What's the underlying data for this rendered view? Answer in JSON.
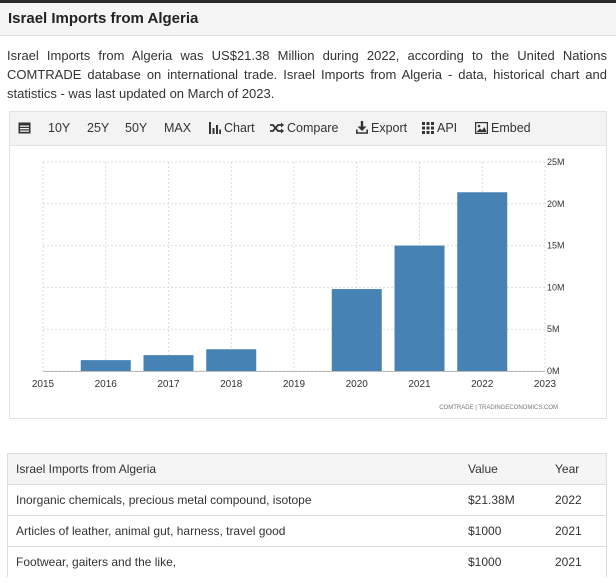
{
  "header": {
    "title": "Israel Imports from Algeria"
  },
  "description": "Israel Imports from Algeria was US$21.38 Million during 2022, according to the United Nations COMTRADE database on international trade. Israel Imports from Algeria - data, historical chart and statistics - was last updated on March of 2023.",
  "toolbar": {
    "items": [
      {
        "label": "",
        "icon": "calendar-icon"
      },
      {
        "label": "10Y"
      },
      {
        "label": "25Y"
      },
      {
        "label": "50Y"
      },
      {
        "label": "MAX"
      },
      {
        "label": "Chart",
        "icon": "bar-chart-icon"
      },
      {
        "label": "Compare",
        "icon": "shuffle-icon"
      },
      {
        "label": "Export",
        "icon": "download-icon"
      },
      {
        "label": "API",
        "icon": "grid-icon"
      },
      {
        "label": "Embed",
        "icon": "image-icon"
      }
    ]
  },
  "chart_data": {
    "type": "bar",
    "x": [
      2016,
      2017,
      2018,
      2020,
      2021,
      2022
    ],
    "values": [
      1.3,
      1.9,
      2.6,
      9.8,
      15.0,
      21.38
    ],
    "x_ticks": [
      "2015",
      "2016",
      "2017",
      "2018",
      "2019",
      "2020",
      "2021",
      "2022",
      "2023"
    ],
    "y_ticks": [
      "0M",
      "5M",
      "10M",
      "15M",
      "20M",
      "25M"
    ],
    "xlim": [
      2015,
      2023
    ],
    "ylim": [
      0,
      25
    ],
    "y_axis_side": "right",
    "grid": true,
    "bar_color": "#4682b4",
    "source": "COMTRADE | TRADINGECONOMICS.COM"
  },
  "table": {
    "headers": [
      "Israel Imports from Algeria",
      "Value",
      "Year"
    ],
    "rows": [
      [
        "Inorganic chemicals, precious metal compound, isotope",
        "$21.38M",
        "2022"
      ],
      [
        "Articles of leather, animal gut, harness, travel good",
        "$1000",
        "2021"
      ],
      [
        "Footwear, gaiters and the like,",
        "$1000",
        "2021"
      ]
    ]
  }
}
